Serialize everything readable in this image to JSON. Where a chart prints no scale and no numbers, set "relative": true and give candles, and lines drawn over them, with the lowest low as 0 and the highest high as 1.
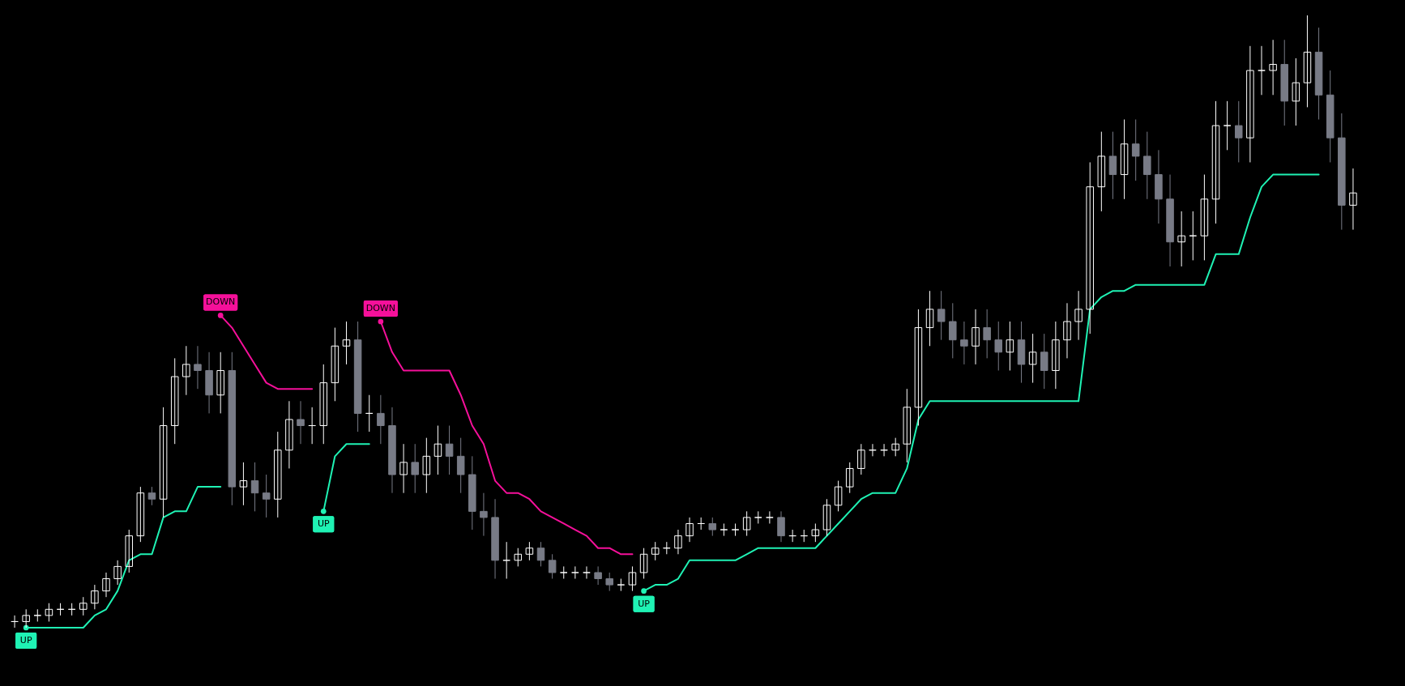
{
  "chart_data": {
    "type": "candlestick",
    "relative": true,
    "categories": [
      null,
      null,
      null,
      null,
      null,
      null,
      null,
      null,
      null,
      null,
      null,
      null,
      null,
      null,
      null,
      null,
      null,
      null,
      null,
      null,
      null,
      null,
      null,
      null,
      null,
      null,
      null,
      null,
      null,
      null,
      null,
      null,
      null,
      null,
      null,
      null,
      null,
      null,
      null,
      null,
      null,
      null,
      null,
      null,
      null,
      null,
      null,
      null,
      null,
      null,
      null,
      null,
      null,
      null,
      null,
      null,
      null,
      null,
      null,
      null,
      null,
      null,
      null,
      null,
      null,
      null,
      null,
      null,
      null,
      null,
      null,
      null,
      null,
      null,
      null,
      null,
      null,
      null,
      null,
      null,
      null,
      null,
      null,
      null,
      null,
      null,
      null,
      null,
      null,
      null,
      null,
      null,
      null,
      null,
      null,
      null,
      null,
      null,
      null,
      null,
      null,
      null,
      null,
      null,
      null,
      null,
      null,
      null,
      null,
      null,
      null,
      null,
      null,
      null,
      null,
      null,
      null,
      null
    ],
    "ohlc": [
      [
        0.01,
        0.02,
        0.0,
        0.01
      ],
      [
        0.01,
        0.03,
        0.0,
        0.02
      ],
      [
        0.02,
        0.03,
        0.01,
        0.02
      ],
      [
        0.02,
        0.04,
        0.01,
        0.03
      ],
      [
        0.03,
        0.04,
        0.02,
        0.03
      ],
      [
        0.03,
        0.04,
        0.02,
        0.03
      ],
      [
        0.03,
        0.05,
        0.02,
        0.04
      ],
      [
        0.04,
        0.07,
        0.03,
        0.06
      ],
      [
        0.06,
        0.09,
        0.05,
        0.08
      ],
      [
        0.08,
        0.11,
        0.07,
        0.1
      ],
      [
        0.1,
        0.16,
        0.09,
        0.15
      ],
      [
        0.15,
        0.23,
        0.14,
        0.22
      ],
      [
        0.22,
        0.23,
        0.2,
        0.21
      ],
      [
        0.21,
        0.36,
        0.18,
        0.33
      ],
      [
        0.33,
        0.44,
        0.3,
        0.41
      ],
      [
        0.41,
        0.46,
        0.38,
        0.43
      ],
      [
        0.43,
        0.46,
        0.39,
        0.42
      ],
      [
        0.42,
        0.45,
        0.35,
        0.38
      ],
      [
        0.38,
        0.45,
        0.35,
        0.42
      ],
      [
        0.42,
        0.45,
        0.2,
        0.23
      ],
      [
        0.23,
        0.27,
        0.2,
        0.24
      ],
      [
        0.24,
        0.27,
        0.19,
        0.22
      ],
      [
        0.22,
        0.25,
        0.18,
        0.21
      ],
      [
        0.21,
        0.32,
        0.18,
        0.29
      ],
      [
        0.29,
        0.37,
        0.26,
        0.34
      ],
      [
        0.34,
        0.37,
        0.3,
        0.33
      ],
      [
        0.33,
        0.36,
        0.3,
        0.33
      ],
      [
        0.33,
        0.43,
        0.3,
        0.4
      ],
      [
        0.4,
        0.49,
        0.37,
        0.46
      ],
      [
        0.46,
        0.5,
        0.43,
        0.47
      ],
      [
        0.47,
        0.5,
        0.32,
        0.35
      ],
      [
        0.35,
        0.38,
        0.32,
        0.35
      ],
      [
        0.35,
        0.38,
        0.3,
        0.33
      ],
      [
        0.33,
        0.36,
        0.22,
        0.25
      ],
      [
        0.25,
        0.3,
        0.22,
        0.27
      ],
      [
        0.27,
        0.3,
        0.22,
        0.25
      ],
      [
        0.25,
        0.31,
        0.22,
        0.28
      ],
      [
        0.28,
        0.33,
        0.25,
        0.3
      ],
      [
        0.3,
        0.33,
        0.25,
        0.28
      ],
      [
        0.28,
        0.31,
        0.22,
        0.25
      ],
      [
        0.25,
        0.28,
        0.16,
        0.19
      ],
      [
        0.19,
        0.22,
        0.15,
        0.18
      ],
      [
        0.18,
        0.21,
        0.08,
        0.11
      ],
      [
        0.11,
        0.14,
        0.08,
        0.11
      ],
      [
        0.11,
        0.13,
        0.1,
        0.12
      ],
      [
        0.12,
        0.14,
        0.11,
        0.13
      ],
      [
        0.13,
        0.14,
        0.1,
        0.11
      ],
      [
        0.11,
        0.12,
        0.08,
        0.09
      ],
      [
        0.09,
        0.1,
        0.08,
        0.09
      ],
      [
        0.09,
        0.1,
        0.08,
        0.09
      ],
      [
        0.09,
        0.1,
        0.08,
        0.09
      ],
      [
        0.09,
        0.1,
        0.07,
        0.08
      ],
      [
        0.08,
        0.09,
        0.06,
        0.07
      ],
      [
        0.07,
        0.08,
        0.06,
        0.07
      ],
      [
        0.07,
        0.1,
        0.06,
        0.09
      ],
      [
        0.09,
        0.13,
        0.08,
        0.12
      ],
      [
        0.12,
        0.14,
        0.11,
        0.13
      ],
      [
        0.13,
        0.14,
        0.12,
        0.13
      ],
      [
        0.13,
        0.16,
        0.12,
        0.15
      ],
      [
        0.15,
        0.18,
        0.14,
        0.17
      ],
      [
        0.17,
        0.18,
        0.16,
        0.17
      ],
      [
        0.17,
        0.18,
        0.15,
        0.16
      ],
      [
        0.16,
        0.17,
        0.15,
        0.16
      ],
      [
        0.16,
        0.17,
        0.15,
        0.16
      ],
      [
        0.16,
        0.19,
        0.15,
        0.18
      ],
      [
        0.18,
        0.19,
        0.17,
        0.18
      ],
      [
        0.18,
        0.19,
        0.17,
        0.18
      ],
      [
        0.18,
        0.19,
        0.14,
        0.15
      ],
      [
        0.15,
        0.16,
        0.14,
        0.15
      ],
      [
        0.15,
        0.16,
        0.14,
        0.15
      ],
      [
        0.15,
        0.17,
        0.14,
        0.16
      ],
      [
        0.16,
        0.21,
        0.15,
        0.2
      ],
      [
        0.2,
        0.24,
        0.19,
        0.23
      ],
      [
        0.23,
        0.27,
        0.22,
        0.26
      ],
      [
        0.26,
        0.3,
        0.25,
        0.29
      ],
      [
        0.29,
        0.3,
        0.28,
        0.29
      ],
      [
        0.29,
        0.3,
        0.28,
        0.29
      ],
      [
        0.29,
        0.31,
        0.28,
        0.3
      ],
      [
        0.3,
        0.39,
        0.27,
        0.36
      ],
      [
        0.36,
        0.52,
        0.33,
        0.49
      ],
      [
        0.49,
        0.55,
        0.46,
        0.52
      ],
      [
        0.52,
        0.55,
        0.47,
        0.5
      ],
      [
        0.5,
        0.53,
        0.44,
        0.47
      ],
      [
        0.47,
        0.5,
        0.43,
        0.46
      ],
      [
        0.46,
        0.52,
        0.43,
        0.49
      ],
      [
        0.49,
        0.52,
        0.44,
        0.47
      ],
      [
        0.47,
        0.5,
        0.42,
        0.45
      ],
      [
        0.45,
        0.5,
        0.42,
        0.47
      ],
      [
        0.47,
        0.5,
        0.4,
        0.43
      ],
      [
        0.43,
        0.48,
        0.4,
        0.45
      ],
      [
        0.45,
        0.48,
        0.39,
        0.42
      ],
      [
        0.42,
        0.5,
        0.39,
        0.47
      ],
      [
        0.47,
        0.53,
        0.44,
        0.5
      ],
      [
        0.5,
        0.55,
        0.47,
        0.52
      ],
      [
        0.52,
        0.76,
        0.48,
        0.72
      ],
      [
        0.72,
        0.81,
        0.68,
        0.77
      ],
      [
        0.77,
        0.81,
        0.7,
        0.74
      ],
      [
        0.74,
        0.83,
        0.7,
        0.79
      ],
      [
        0.79,
        0.83,
        0.73,
        0.77
      ],
      [
        0.77,
        0.81,
        0.7,
        0.74
      ],
      [
        0.74,
        0.78,
        0.66,
        0.7
      ],
      [
        0.7,
        0.74,
        0.59,
        0.63
      ],
      [
        0.63,
        0.68,
        0.59,
        0.64
      ],
      [
        0.64,
        0.68,
        0.6,
        0.64
      ],
      [
        0.64,
        0.74,
        0.6,
        0.7
      ],
      [
        0.7,
        0.86,
        0.66,
        0.82
      ],
      [
        0.82,
        0.86,
        0.78,
        0.82
      ],
      [
        0.82,
        0.86,
        0.76,
        0.8
      ],
      [
        0.8,
        0.95,
        0.76,
        0.91
      ],
      [
        0.91,
        0.95,
        0.87,
        0.91
      ],
      [
        0.91,
        0.96,
        0.87,
        0.92
      ],
      [
        0.92,
        0.96,
        0.82,
        0.86
      ],
      [
        0.86,
        0.93,
        0.82,
        0.89
      ],
      [
        0.89,
        1.0,
        0.85,
        0.94
      ],
      [
        0.94,
        0.98,
        0.83,
        0.87
      ],
      [
        0.87,
        0.91,
        0.76,
        0.8
      ],
      [
        0.8,
        0.84,
        0.65,
        0.69
      ],
      [
        0.69,
        0.75,
        0.65,
        0.71
      ]
    ],
    "colors": [
      "#ffffff",
      "#ffffff",
      "#ffffff",
      "#ffffff",
      "#ffffff",
      "#ffffff",
      "#ffffff",
      "#ffffff",
      "#ffffff",
      "#ffffff",
      "#ffffff",
      "#ffffff",
      "#787b86",
      "#ffffff",
      "#ffffff",
      "#ffffff",
      "#787b86",
      "#787b86",
      "#ffffff",
      "#787b86",
      "#ffffff",
      "#787b86",
      "#787b86",
      "#ffffff",
      "#ffffff",
      "#787b86",
      "#ffffff",
      "#ffffff",
      "#ffffff",
      "#ffffff",
      "#787b86",
      "#ffffff",
      "#787b86",
      "#787b86",
      "#ffffff",
      "#787b86",
      "#ffffff",
      "#ffffff",
      "#787b86",
      "#787b86",
      "#787b86",
      "#787b86",
      "#787b86",
      "#ffffff",
      "#ffffff",
      "#ffffff",
      "#787b86",
      "#787b86",
      "#ffffff",
      "#ffffff",
      "#ffffff",
      "#787b86",
      "#787b86",
      "#ffffff",
      "#ffffff",
      "#ffffff",
      "#ffffff",
      "#ffffff",
      "#ffffff",
      "#ffffff",
      "#ffffff",
      "#787b86",
      "#ffffff",
      "#ffffff",
      "#ffffff",
      "#ffffff",
      "#ffffff",
      "#787b86",
      "#ffffff",
      "#ffffff",
      "#ffffff",
      "#ffffff",
      "#ffffff",
      "#ffffff",
      "#ffffff",
      "#ffffff",
      "#ffffff",
      "#ffffff",
      "#ffffff",
      "#ffffff",
      "#ffffff",
      "#787b86",
      "#787b86",
      "#787b86",
      "#ffffff",
      "#787b86",
      "#787b86",
      "#ffffff",
      "#787b86",
      "#ffffff",
      "#787b86",
      "#ffffff",
      "#ffffff",
      "#ffffff",
      "#ffffff",
      "#ffffff",
      "#787b86",
      "#ffffff",
      "#787b86",
      "#787b86",
      "#787b86",
      "#787b86",
      "#ffffff",
      "#ffffff",
      "#ffffff",
      "#ffffff",
      "#ffffff",
      "#787b86",
      "#ffffff",
      "#ffffff",
      "#ffffff",
      "#787b86",
      "#ffffff",
      "#ffffff",
      "#787b86",
      "#787b86",
      "#787b86",
      "#ffffff"
    ],
    "series": [
      {
        "type": "line",
        "color": "#1ff2b4",
        "values": [
          null,
          0.0,
          0.0,
          0.0,
          0.0,
          0.0,
          0.0,
          0.02,
          0.03,
          0.06,
          0.11,
          0.12,
          0.12,
          0.18,
          0.19,
          0.19,
          0.23,
          0.23,
          0.23,
          null,
          null,
          null,
          null,
          null,
          null,
          null,
          null,
          0.19,
          0.28,
          0.3,
          0.3,
          0.3,
          null,
          null,
          null,
          null,
          null,
          null,
          null,
          null,
          null,
          null,
          null,
          null,
          null,
          null,
          null,
          null,
          null,
          null,
          null,
          null,
          null,
          null,
          null,
          0.06,
          0.07,
          0.07,
          0.08,
          0.11,
          0.11,
          0.11,
          0.11,
          0.11,
          0.12,
          0.13,
          0.13,
          0.13,
          0.13,
          0.13,
          0.13,
          0.15,
          0.17,
          0.19,
          0.21,
          0.22,
          0.22,
          0.22,
          0.26,
          0.34,
          0.37,
          0.37,
          0.37,
          0.37,
          0.37,
          0.37,
          0.37,
          0.37,
          0.37,
          0.37,
          0.37,
          0.37,
          0.37,
          0.37,
          0.52,
          0.54,
          0.55,
          0.55,
          0.56,
          0.56,
          0.56,
          0.56,
          0.56,
          0.56,
          0.56,
          0.61,
          0.61,
          0.61,
          0.67,
          0.72,
          0.74,
          0.74,
          0.74,
          0.74,
          0.74,
          null,
          null,
          null
        ]
      },
      {
        "type": "line",
        "color": "#f5109a",
        "values": [
          null,
          null,
          null,
          null,
          null,
          null,
          null,
          null,
          null,
          null,
          null,
          null,
          null,
          null,
          null,
          null,
          null,
          null,
          0.51,
          0.49,
          0.46,
          0.43,
          0.4,
          0.39,
          0.39,
          0.39,
          0.39,
          null,
          null,
          null,
          null,
          null,
          0.5,
          0.45,
          0.42,
          0.42,
          0.42,
          0.42,
          0.42,
          0.38,
          0.33,
          0.3,
          0.24,
          0.22,
          0.22,
          0.21,
          0.19,
          0.18,
          0.17,
          0.16,
          0.15,
          0.13,
          0.13,
          0.12,
          0.12,
          null,
          null,
          null,
          null,
          null,
          null,
          null,
          null,
          null,
          null,
          null,
          null,
          null,
          null,
          null,
          null,
          null,
          null,
          null,
          null,
          null,
          null,
          null,
          null,
          null,
          null,
          null,
          null,
          null,
          null,
          null,
          null,
          null,
          null,
          null,
          null,
          null,
          null,
          null,
          null,
          null,
          null,
          null,
          null,
          null,
          null,
          null,
          null,
          null,
          null,
          null,
          null,
          null,
          null,
          null,
          null,
          null,
          null,
          null,
          null,
          null,
          null,
          null
        ]
      }
    ],
    "annotations": [
      "UP",
      "DOWN",
      "UP",
      "DOWN",
      "UP"
    ]
  }
}
